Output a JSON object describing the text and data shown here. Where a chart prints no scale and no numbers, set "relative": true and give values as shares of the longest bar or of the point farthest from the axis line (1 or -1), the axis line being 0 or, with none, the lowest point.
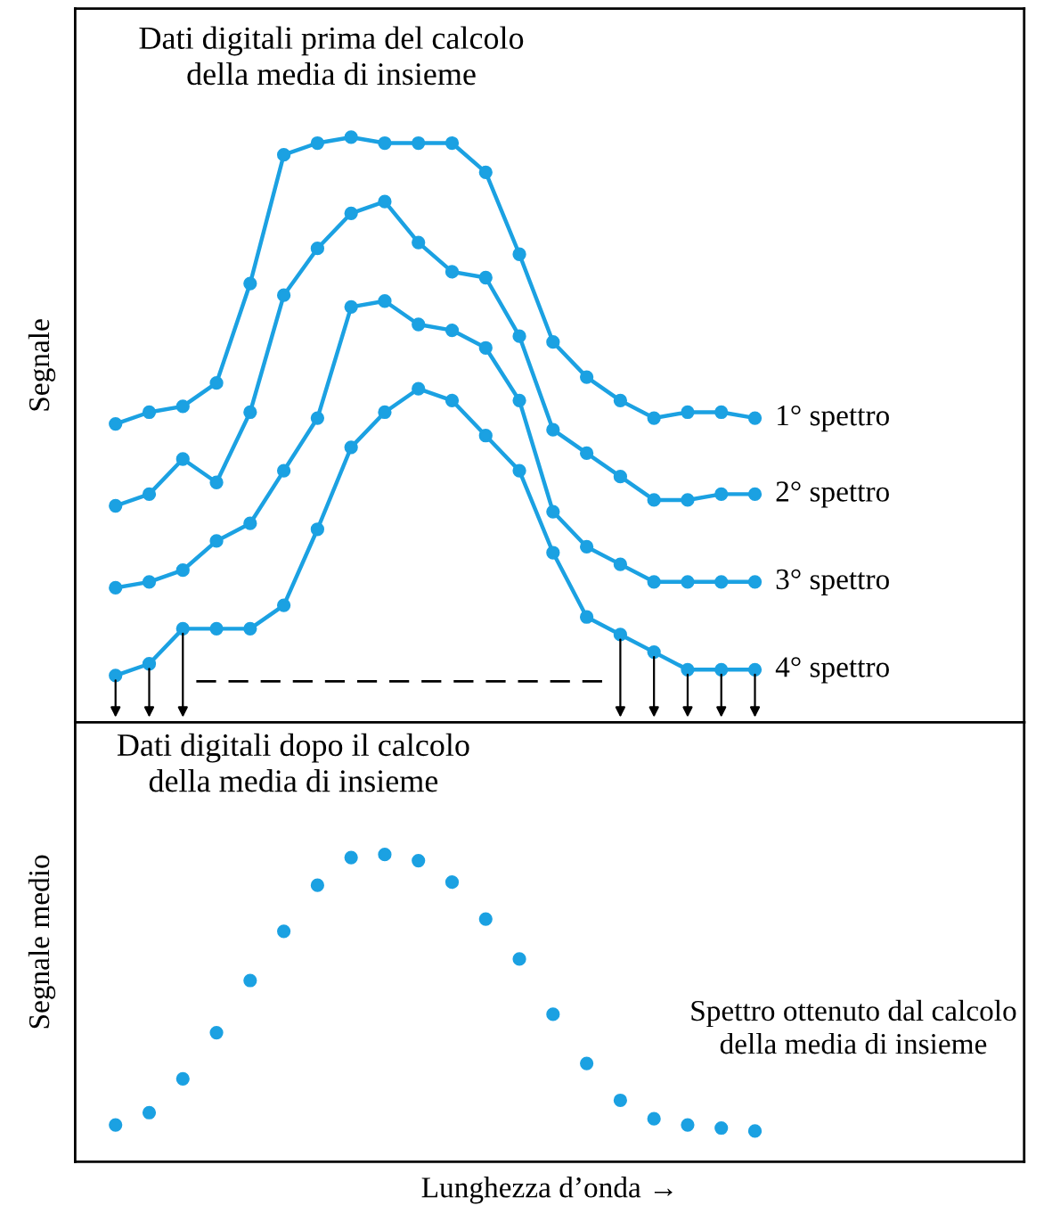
{
  "chart_data": [
    {
      "type": "line",
      "title": "Dati digitali prima del calcolo\ndella media di insieme",
      "ylabel": "Segnale",
      "relative": true,
      "tick_labels": false,
      "marker": "circle",
      "line_style": "solid",
      "ref_lines": [
        {
          "axis": "y",
          "value": 0.07,
          "color": "#000000",
          "line_style": "dashed"
        }
      ],
      "categories": [
        null,
        null,
        null,
        null,
        null,
        null,
        null,
        null,
        null,
        null,
        null,
        null,
        null,
        null,
        null,
        null,
        null,
        null,
        null,
        null
      ],
      "series": [
        {
          "name": "1° spettro",
          "color": "#1ba1e2",
          "values": [
            0.51,
            0.53,
            0.54,
            0.58,
            0.75,
            0.97,
            0.99,
            1.0,
            0.99,
            0.99,
            0.99,
            0.94,
            0.8,
            0.65,
            0.59,
            0.55,
            0.52,
            0.53,
            0.53,
            0.52
          ]
        },
        {
          "name": "2° spettro",
          "color": "#1ba1e2",
          "values": [
            0.37,
            0.39,
            0.45,
            0.41,
            0.53,
            0.73,
            0.81,
            0.87,
            0.89,
            0.82,
            0.77,
            0.76,
            0.66,
            0.5,
            0.46,
            0.42,
            0.38,
            0.38,
            0.39,
            0.39
          ]
        },
        {
          "name": "3° spettro",
          "color": "#1ba1e2",
          "values": [
            0.23,
            0.24,
            0.26,
            0.31,
            0.34,
            0.43,
            0.52,
            0.71,
            0.72,
            0.68,
            0.67,
            0.64,
            0.55,
            0.36,
            0.3,
            0.27,
            0.24,
            0.24,
            0.24,
            0.24
          ]
        },
        {
          "name": "4° spettro",
          "color": "#1ba1e2",
          "values": [
            0.08,
            0.1,
            0.16,
            0.16,
            0.16,
            0.2,
            0.33,
            0.47,
            0.53,
            0.57,
            0.55,
            0.49,
            0.43,
            0.29,
            0.18,
            0.15,
            0.12,
            0.09,
            0.09,
            0.09
          ]
        }
      ]
    },
    {
      "type": "scatter",
      "title": "Dati digitali dopo il calcolo\ndella media di insieme",
      "ylabel": "Segnale medio",
      "xlabel": "Lunghezza d’onda →",
      "relative": true,
      "tick_labels": false,
      "categories": [
        null,
        null,
        null,
        null,
        null,
        null,
        null,
        null,
        null,
        null,
        null,
        null,
        null,
        null,
        null,
        null,
        null,
        null,
        null,
        null
      ],
      "series": [
        {
          "color": "#1ba1e2",
          "values": [
            0.12,
            0.16,
            0.27,
            0.42,
            0.59,
            0.75,
            0.9,
            0.99,
            1.0,
            0.98,
            0.91,
            0.79,
            0.66,
            0.48,
            0.32,
            0.2,
            0.14,
            0.12,
            0.11,
            0.1
          ]
        }
      ],
      "annotations": [
        "Spettro ottenuto dal calcolo\ndella media di insieme"
      ]
    }
  ]
}
